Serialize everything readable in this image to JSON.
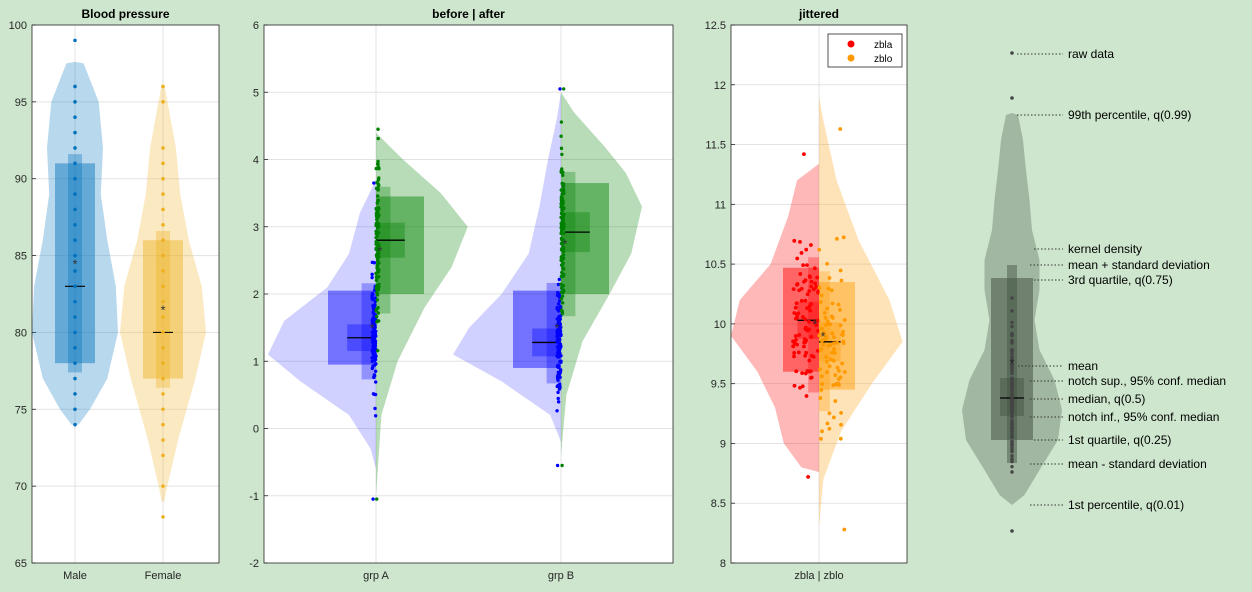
{
  "chart_data": [
    {
      "type": "violin",
      "title": "Blood pressure",
      "ylim": [
        65,
        100
      ],
      "yticks": [
        "65",
        "70",
        "75",
        "80",
        "85",
        "90",
        "95",
        "100"
      ],
      "categories": [
        "Male",
        "Female"
      ],
      "series": [
        {
          "name": "Male",
          "color": "#0072bd",
          "min": 74,
          "q1": 78,
          "median": 83,
          "q3": 91,
          "mean": 84.5,
          "max": 99
        },
        {
          "name": "Female",
          "color": "#edb120",
          "min": 68,
          "q1": 77,
          "median": 80,
          "q3": 86,
          "mean": 81.5,
          "max": 96
        }
      ],
      "grid": true
    },
    {
      "type": "violin",
      "title": "before | after",
      "ylim": [
        -2,
        6
      ],
      "yticks": [
        "-2",
        "-1",
        "0",
        "1",
        "2",
        "3",
        "4",
        "5",
        "6"
      ],
      "categories": [
        "grp A",
        "grp B"
      ],
      "series": [
        {
          "name": "grp A before",
          "color": "#0000ff",
          "min": -1.05,
          "q1": 0.95,
          "median": 1.35,
          "q3": 2.05,
          "mean": 1.5,
          "max": 3.65
        },
        {
          "name": "grp A after",
          "color": "#008000",
          "min": -1.05,
          "q1": 2.0,
          "median": 2.8,
          "q3": 3.45,
          "mean": 2.65,
          "max": 4.45
        },
        {
          "name": "grp B before",
          "color": "#0000ff",
          "min": -0.55,
          "q1": 0.9,
          "median": 1.28,
          "q3": 2.05,
          "mean": 1.5,
          "max": 5.05
        },
        {
          "name": "grp B after",
          "color": "#008000",
          "min": -0.55,
          "q1": 2.0,
          "median": 2.92,
          "q3": 3.65,
          "mean": 2.75,
          "max": 5.05
        }
      ],
      "grid": true
    },
    {
      "type": "violin",
      "title": "jittered",
      "ylim": [
        8,
        12.5
      ],
      "yticks": [
        "8",
        "8.5",
        "9",
        "9.5",
        "10",
        "10.5",
        "11",
        "11.5",
        "12",
        "12.5"
      ],
      "categories": [
        "zbla | zblo"
      ],
      "series": [
        {
          "name": "zbla",
          "color": "#ff0000",
          "min": 8.72,
          "q1": 9.6,
          "median": 10.03,
          "q3": 10.47,
          "mean": 10.0,
          "max": 11.42
        },
        {
          "name": "zblo",
          "color": "#ff9900",
          "min": 8.28,
          "q1": 9.45,
          "median": 9.85,
          "q3": 10.35,
          "mean": 9.9,
          "max": 11.63
        }
      ],
      "legend": {
        "location": "top-right",
        "entries": [
          "zbla",
          "zblo"
        ]
      },
      "grid": true
    },
    {
      "type": "violin",
      "title": "",
      "color": "#7f8f7f",
      "annotations": [
        "raw data",
        "99th percentile, q(0.99)",
        "kernel density",
        "mean + standard deviation",
        "3rd quartile, q(0.75)",
        "mean",
        "notch sup., 95% conf. median",
        "median, q(0.5)",
        "notch inf., 95% conf. median",
        "1st quartile, q(0.25)",
        "mean - standard deviation",
        "1st percentile, q(0.01)"
      ]
    }
  ]
}
